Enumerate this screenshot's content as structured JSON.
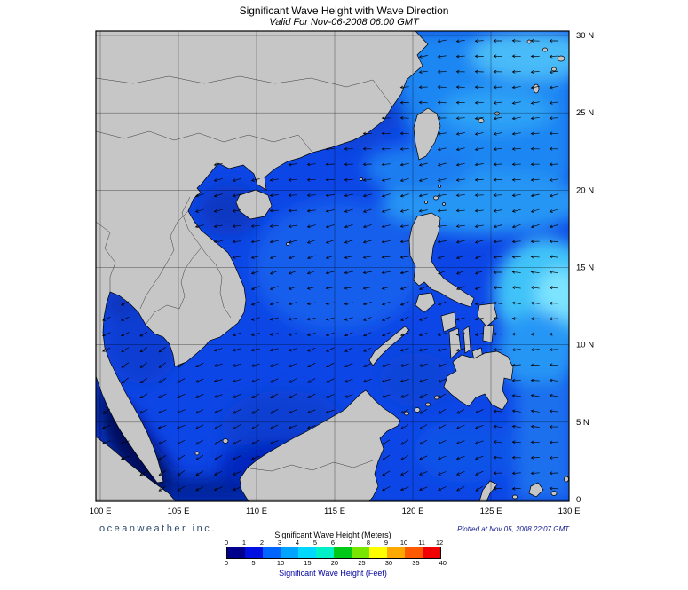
{
  "header": {
    "title": "Significant Wave Height with Wave Direction",
    "subtitle": "Valid For Nov-06-2008 06:00 GMT"
  },
  "map": {
    "lat_ticks": [
      "30 N",
      "25 N",
      "20 N",
      "15 N",
      "10 N",
      "5 N",
      "0"
    ],
    "lon_ticks": [
      "100 E",
      "105 E",
      "110 E",
      "115 E",
      "120 E",
      "125 E",
      "130 E"
    ],
    "dominant_wave_direction": "arrows point generally west to southwest"
  },
  "footer": {
    "brand": "oceanweather inc.",
    "plotted": "Plotted at Nov 05, 2008 22:07 GMT"
  },
  "legend": {
    "meters_title": "Significant Wave Height (Meters)",
    "feet_title": "Significant Wave Height (Feet)",
    "meters_ticks": [
      "0",
      "1",
      "2",
      "3",
      "4",
      "5",
      "6",
      "7",
      "8",
      "9",
      "10",
      "11",
      "12"
    ],
    "feet_ticks": [
      "0",
      "5",
      "10",
      "15",
      "20",
      "25",
      "30",
      "35",
      "40"
    ],
    "colors": [
      "#00008c",
      "#0010e0",
      "#0064ff",
      "#00a4ff",
      "#00d8ff",
      "#00f0c8",
      "#00c818",
      "#78e600",
      "#ffff00",
      "#ffa800",
      "#ff5a00",
      "#f00000"
    ]
  },
  "chart_data": {
    "type": "heatmap",
    "title": "Significant Wave Height with Wave Direction",
    "valid_time": "Nov-06-2008 06:00 GMT",
    "plotted_time": "Nov 05, 2008 22:07 GMT",
    "region": {
      "lon_deg_e": [
        100,
        130
      ],
      "lat_deg_n": [
        0,
        30
      ]
    },
    "colorbar": {
      "meters_ticks": [
        0,
        1,
        2,
        3,
        4,
        5,
        6,
        7,
        8,
        9,
        10,
        11,
        12
      ],
      "feet_ticks": [
        0,
        5,
        10,
        15,
        20,
        25,
        30,
        35,
        40
      ],
      "colors": [
        "#00008c",
        "#0010e0",
        "#0064ff",
        "#00a4ff",
        "#00d8ff",
        "#00f0c8",
        "#00c818",
        "#78e600",
        "#ffff00",
        "#ffa800",
        "#ff5a00",
        "#f00000"
      ]
    },
    "field_summary": "Wave heights mostly 1-2 m across the South China Sea, 2-3 m through the Luzon Strait and East China Sea, up to ~3-4 m east of the Philippines, under 1 m in the Malacca Strait and sheltered coastal waters; wave direction arrows point generally west to southwest."
  }
}
